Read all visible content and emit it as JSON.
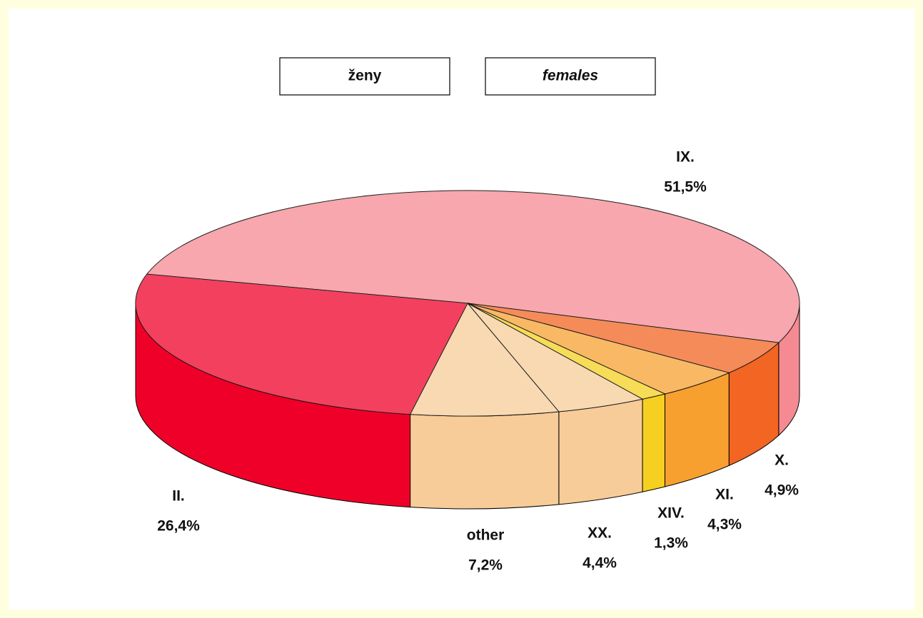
{
  "chart_data": {
    "type": "pie3d",
    "title": "ženy",
    "subtitle": "females",
    "categories": [
      "IX.",
      "X.",
      "XI.",
      "XIV.",
      "XX.",
      "other",
      "II."
    ],
    "values": [
      51.5,
      4.9,
      4.3,
      1.3,
      4.4,
      7.2,
      26.4
    ],
    "value_labels": [
      "51,5%",
      "4,9%",
      "4,3%",
      "1,3%",
      "4,4%",
      "7,2%",
      "26,4%"
    ],
    "colors": [
      "#f58a92",
      "#f26522",
      "#f7a030",
      "#f5d020",
      "#f7cc98",
      "#f7cc98",
      "#ef0028"
    ]
  }
}
